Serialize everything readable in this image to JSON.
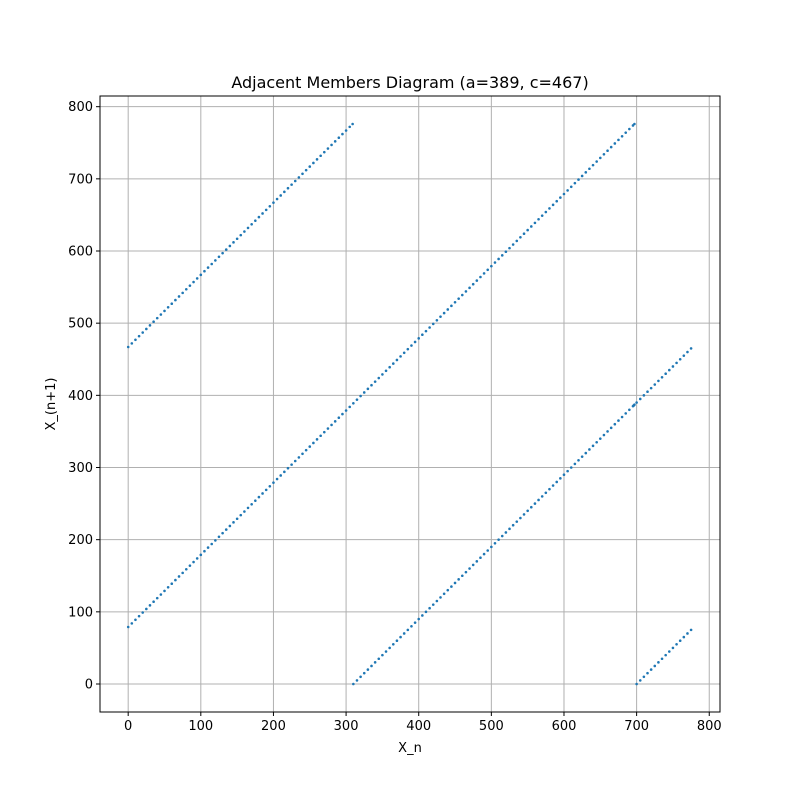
{
  "chart_data": {
    "type": "scatter",
    "title": "Adjacent Members Diagram (a=389, c=467)",
    "xlabel": "X_n",
    "ylabel": "X_(n+1)",
    "xlim": [
      -38.8,
      814.8
    ],
    "ylim": [
      -38.8,
      814.8
    ],
    "x_ticks": [
      0,
      100,
      200,
      300,
      400,
      500,
      600,
      700,
      800
    ],
    "y_ticks": [
      0,
      100,
      200,
      300,
      400,
      500,
      600,
      700,
      800
    ],
    "grid": true,
    "legend": "none",
    "marker_color": "#1f77b4",
    "grid_color": "#b0b0b0",
    "series": [
      {
        "x": [
          0,
          5,
          10,
          15,
          20,
          25,
          30,
          35,
          40,
          45,
          50,
          55,
          60,
          65,
          70,
          75,
          80,
          85,
          90,
          95,
          100,
          105,
          110,
          115,
          120,
          125,
          130,
          135,
          140,
          145,
          150,
          155,
          160,
          165,
          170,
          175,
          180,
          185,
          190,
          195,
          200,
          205,
          210,
          215,
          220,
          225,
          230,
          235,
          240,
          245,
          250,
          255,
          260,
          265,
          270,
          275,
          280,
          285,
          290,
          295,
          300,
          305,
          309,
          310,
          315,
          320,
          325,
          330,
          335,
          340,
          345,
          350,
          355,
          360,
          365,
          370,
          375,
          380,
          385,
          390,
          395,
          400,
          405,
          410,
          415,
          420,
          425,
          430,
          435,
          440,
          445,
          450,
          455,
          460,
          465,
          470,
          475,
          480,
          485,
          490,
          495,
          500,
          505,
          510,
          515,
          520,
          525,
          530,
          535,
          540,
          545,
          550,
          555,
          560,
          565,
          570,
          575,
          580,
          585,
          590,
          595,
          600,
          605,
          610,
          615,
          620,
          625,
          630,
          635,
          640,
          645,
          650,
          655,
          660,
          665,
          670,
          675,
          680,
          685,
          690,
          695,
          696,
          697,
          700,
          705,
          710,
          715,
          720,
          725,
          730,
          735,
          740,
          745,
          750,
          755,
          760,
          765,
          770,
          775
        ],
        "y": [
          467,
          472,
          477,
          482,
          487,
          492,
          497,
          502,
          507,
          512,
          517,
          522,
          527,
          532,
          537,
          542,
          547,
          552,
          557,
          562,
          567,
          572,
          577,
          582,
          587,
          592,
          597,
          602,
          607,
          612,
          617,
          622,
          627,
          632,
          637,
          642,
          647,
          652,
          657,
          662,
          667,
          672,
          677,
          682,
          687,
          692,
          697,
          702,
          707,
          712,
          717,
          722,
          727,
          732,
          737,
          742,
          747,
          752,
          757,
          762,
          767,
          772,
          776,
          0,
          5,
          10,
          15,
          20,
          25,
          30,
          35,
          40,
          45,
          50,
          55,
          60,
          65,
          70,
          75,
          80,
          85,
          90,
          95,
          100,
          105,
          110,
          115,
          120,
          125,
          130,
          135,
          140,
          145,
          150,
          155,
          160,
          165,
          170,
          175,
          180,
          185,
          190,
          195,
          200,
          205,
          210,
          215,
          220,
          225,
          230,
          235,
          240,
          245,
          250,
          255,
          260,
          265,
          270,
          275,
          280,
          285,
          290,
          295,
          300,
          305,
          310,
          315,
          320,
          325,
          330,
          335,
          340,
          345,
          350,
          355,
          360,
          365,
          370,
          375,
          380,
          385,
          386,
          387,
          390,
          395,
          400,
          405,
          410,
          415,
          420,
          425,
          430,
          435,
          440,
          445,
          450,
          455,
          460,
          465
        ]
      },
      {
        "x": [
          0,
          5,
          10,
          15,
          20,
          25,
          30,
          35,
          40,
          45,
          50,
          55,
          60,
          65,
          70,
          75,
          80,
          85,
          90,
          95,
          100,
          105,
          110,
          115,
          120,
          125,
          130,
          135,
          140,
          145,
          150,
          155,
          160,
          165,
          170,
          175,
          180,
          185,
          190,
          195,
          200,
          205,
          210,
          215,
          220,
          225,
          230,
          235,
          240,
          245,
          250,
          255,
          260,
          265,
          270,
          275,
          280,
          285,
          290,
          295,
          300,
          305,
          310,
          315,
          320,
          325,
          330,
          335,
          340,
          345,
          350,
          355,
          360,
          365,
          370,
          375,
          380,
          385,
          390,
          395,
          400,
          405,
          410,
          415,
          420,
          425,
          430,
          435,
          440,
          445,
          450,
          455,
          460,
          465,
          470,
          475,
          480,
          485,
          490,
          495,
          500,
          505,
          510,
          515,
          520,
          525,
          530,
          535,
          540,
          545,
          550,
          555,
          560,
          565,
          570,
          575,
          580,
          585,
          590,
          595,
          600,
          605,
          610,
          615,
          620,
          625,
          630,
          635,
          640,
          645,
          650,
          655,
          660,
          665,
          670,
          675,
          680,
          685,
          690,
          695,
          697,
          700,
          705,
          710,
          715,
          720,
          725,
          730,
          735,
          740,
          745,
          750,
          755,
          760,
          765,
          770,
          775
        ],
        "y": [
          79,
          84,
          89,
          94,
          99,
          104,
          109,
          114,
          119,
          124,
          129,
          134,
          139,
          144,
          149,
          154,
          159,
          164,
          169,
          174,
          179,
          184,
          189,
          194,
          199,
          204,
          209,
          214,
          219,
          224,
          229,
          234,
          239,
          244,
          249,
          254,
          259,
          264,
          269,
          274,
          279,
          284,
          289,
          294,
          299,
          304,
          309,
          314,
          319,
          324,
          329,
          334,
          339,
          344,
          349,
          354,
          359,
          364,
          369,
          374,
          379,
          384,
          389,
          394,
          399,
          404,
          409,
          414,
          419,
          424,
          429,
          434,
          439,
          444,
          449,
          454,
          459,
          464,
          469,
          474,
          479,
          484,
          489,
          494,
          499,
          504,
          509,
          514,
          519,
          524,
          529,
          534,
          539,
          544,
          549,
          554,
          559,
          564,
          569,
          574,
          579,
          584,
          589,
          594,
          599,
          604,
          609,
          614,
          619,
          624,
          629,
          634,
          639,
          644,
          649,
          654,
          659,
          664,
          669,
          674,
          679,
          684,
          689,
          694,
          699,
          704,
          709,
          714,
          719,
          724,
          729,
          734,
          739,
          744,
          749,
          754,
          759,
          764,
          769,
          774,
          776,
          0,
          5,
          10,
          15,
          20,
          25,
          30,
          35,
          40,
          45,
          50,
          55,
          60,
          65,
          70,
          75
        ]
      }
    ]
  }
}
